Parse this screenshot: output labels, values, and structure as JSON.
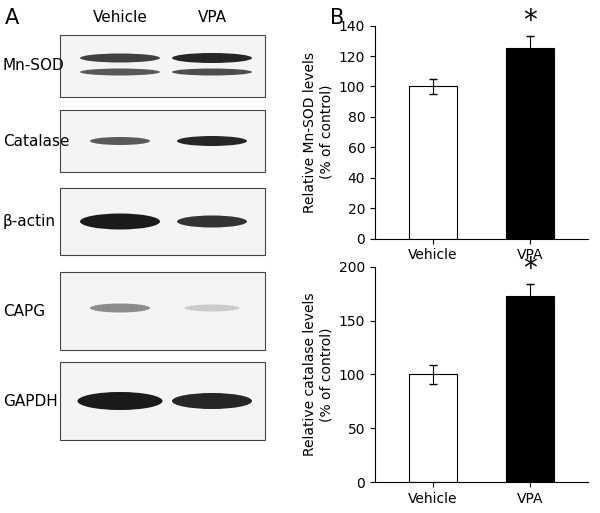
{
  "panel_labels": [
    "A",
    "B"
  ],
  "blot": {
    "lanes": [
      "Vehicle",
      "VPA"
    ],
    "rows": [
      "Mn-SOD",
      "Catalase",
      "β-actin",
      "CAPG",
      "GAPDH"
    ]
  },
  "chart_data": [
    {
      "type": "bar",
      "categories": [
        "Vehicle",
        "VPA"
      ],
      "values": [
        100,
        125
      ],
      "errors": [
        5,
        8
      ],
      "colors": [
        "#ffffff",
        "#000000"
      ],
      "ylabel": "Relative Mn-SOD levels\n(% of control)",
      "ylim": [
        0,
        140
      ],
      "yticks": [
        0,
        20,
        40,
        60,
        80,
        100,
        120,
        140
      ],
      "annotations": [
        {
          "text": "*",
          "category": "VPA"
        }
      ]
    },
    {
      "type": "bar",
      "categories": [
        "Vehicle",
        "VPA"
      ],
      "values": [
        100,
        173
      ],
      "errors": [
        9,
        11
      ],
      "colors": [
        "#ffffff",
        "#000000"
      ],
      "ylabel": "Relative catalase levels\n(% of control)",
      "ylim": [
        0,
        200
      ],
      "yticks": [
        0,
        50,
        100,
        150,
        200
      ],
      "annotations": [
        {
          "text": "*",
          "category": "VPA"
        }
      ]
    }
  ]
}
